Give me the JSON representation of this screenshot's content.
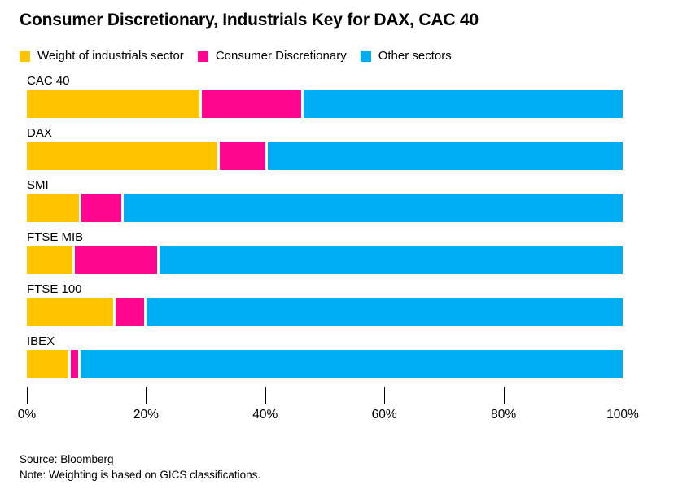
{
  "title": "Consumer Discretionary, Industrials Key for DAX, CAC 40",
  "legend": [
    {
      "label": "Weight of industrials sector",
      "color": "#FFC400",
      "icon": "yellow-swatch-icon"
    },
    {
      "label": "Consumer Discretionary",
      "color": "#FF0590",
      "icon": "magenta-swatch-icon"
    },
    {
      "label": "Other sectors",
      "color": "#00ADF2",
      "icon": "blue-swatch-icon"
    }
  ],
  "chart_data": {
    "type": "bar",
    "orientation": "horizontal",
    "stacked": true,
    "title": "Consumer Discretionary, Industrials Key for DAX, CAC 40",
    "categories": [
      "CAC 40",
      "DAX",
      "SMI",
      "FTSE MIB",
      "FTSE 100",
      "IBEX"
    ],
    "series": [
      {
        "name": "Weight of industrials sector",
        "color": "#FFC400",
        "values": [
          29.0,
          32.0,
          8.8,
          7.7,
          14.5,
          7.0
        ]
      },
      {
        "name": "Consumer Discretionary",
        "color": "#FF0590",
        "values": [
          17.0,
          8.0,
          7.1,
          14.2,
          5.2,
          1.6
        ]
      },
      {
        "name": "Other sectors",
        "color": "#00ADF2",
        "values": [
          54.0,
          60.0,
          84.1,
          78.1,
          80.3,
          91.4
        ]
      }
    ],
    "xlabel": "",
    "ylabel": "",
    "xlim": [
      0,
      100
    ],
    "x_ticks": [
      "0%",
      "20%",
      "40%",
      "60%",
      "80%",
      "100%"
    ],
    "x_tick_values": [
      0,
      20,
      40,
      60,
      80,
      100
    ],
    "grid": false,
    "legend_position": "top"
  },
  "footer": {
    "source": "Source: Bloomberg",
    "note": "Note: Weighting is based on GICS classifications."
  }
}
